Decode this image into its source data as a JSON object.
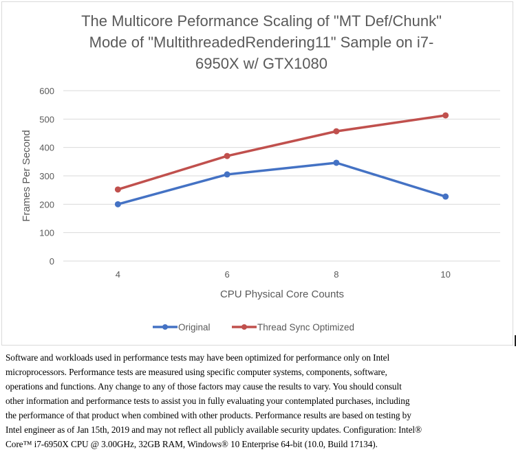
{
  "chart_data": {
    "type": "line",
    "title": "The Multicore Peformance Scaling of \"MT Def/Chunk\" Mode of \"MultithreadedRendering11\" Sample on i7-6950X w/ GTX1080",
    "title_lines": [
      "The Multicore Peformance Scaling of \"MT Def/Chunk\"",
      "Mode of \"MultithreadedRendering11\" Sample on i7-",
      "6950X w/ GTX1080"
    ],
    "xlabel": "CPU Physical Core Counts",
    "ylabel": "Frames Per Second",
    "categories": [
      "4",
      "6",
      "8",
      "10"
    ],
    "ylim": [
      0,
      600
    ],
    "yticks": [
      "0",
      "100",
      "200",
      "300",
      "400",
      "500",
      "600"
    ],
    "grid": true,
    "legend_position": "bottom",
    "series": [
      {
        "name": "Original",
        "color": "#4472C4",
        "values": [
          200,
          305,
          346,
          227
        ]
      },
      {
        "name": "Thread Sync Optimized",
        "color": "#C0504D",
        "values": [
          252,
          370,
          457,
          513
        ]
      }
    ]
  },
  "disclaimer": {
    "lines": [
      "Software and workloads used in performance tests may have been optimized for performance only on Intel",
      "microprocessors.  Performance tests are measured using specific computer systems, components, software,",
      "operations and functions.  Any change to any of those factors may cause the results to vary.  You should consult",
      "other information and performance tests to assist you in fully evaluating your contemplated purchases, including",
      "the performance of that product when combined with other products.  Performance results are based on testing by",
      "Intel engineer as of Jan 15th, 2019 and may not reflect all publicly available security updates.  Configuration: Intel®",
      "Core™ i7-6950X CPU @ 3.00GHz, 32GB RAM, Windows® 10 Enterprise 64-bit (10.0, Build 17134)."
    ]
  }
}
